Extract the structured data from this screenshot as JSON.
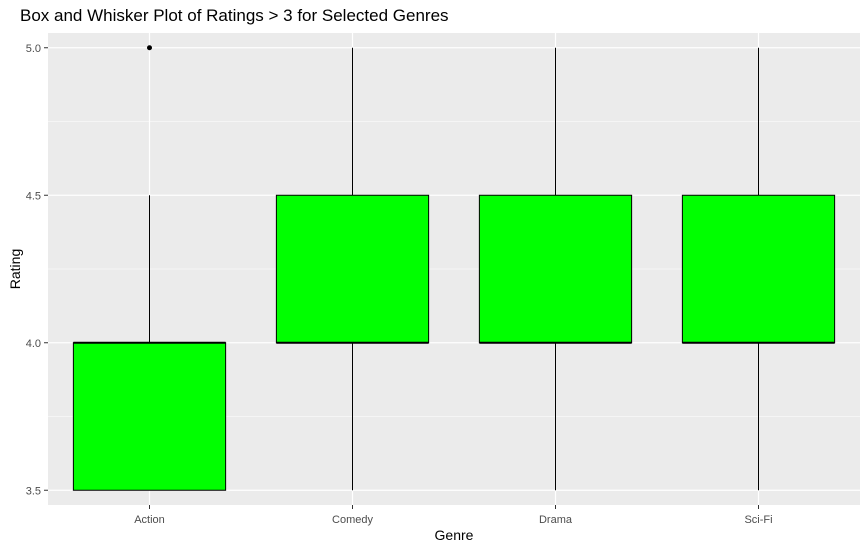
{
  "chart_data": {
    "type": "box",
    "title": "Box and Whisker Plot of Ratings > 3 for Selected Genres",
    "xlabel": "Genre",
    "ylabel": "Rating",
    "categories": [
      "Action",
      "Comedy",
      "Drama",
      "Sci-Fi"
    ],
    "ylim": [
      3.45,
      5.05
    ],
    "yticks": [
      3.5,
      4.0,
      4.5,
      5.0
    ],
    "ytick_labels": [
      "3.5",
      "4.0",
      "4.5",
      "5.0"
    ],
    "grid": true,
    "boxes": [
      {
        "category": "Action",
        "min": 3.5,
        "q1": 3.5,
        "median": 4.0,
        "q3": 4.0,
        "max": 4.5,
        "outliers": [
          5.0
        ]
      },
      {
        "category": "Comedy",
        "min": 3.5,
        "q1": 4.0,
        "median": 4.0,
        "q3": 4.5,
        "max": 5.0,
        "outliers": []
      },
      {
        "category": "Drama",
        "min": 3.5,
        "q1": 4.0,
        "median": 4.0,
        "q3": 4.5,
        "max": 5.0,
        "outliers": []
      },
      {
        "category": "Sci-Fi",
        "min": 3.5,
        "q1": 4.0,
        "median": 4.0,
        "q3": 4.5,
        "max": 5.0,
        "outliers": []
      }
    ],
    "colors": {
      "box_fill": "#00ff00",
      "box_stroke": "#000000",
      "panel_bg": "#ebebeb",
      "grid": "#ffffff"
    }
  }
}
